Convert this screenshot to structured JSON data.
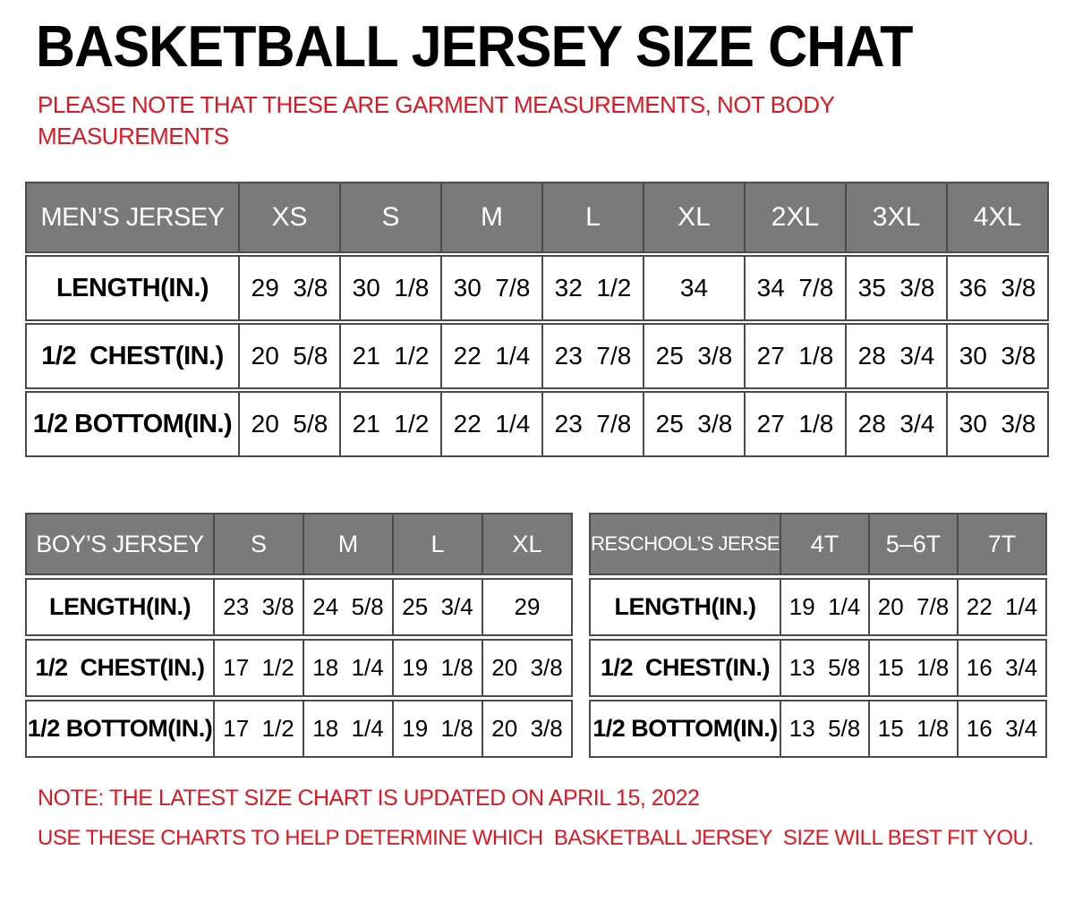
{
  "page": {
    "title": "BASKETBALL JERSEY SIZE CHAT",
    "top_note_line1": "PLEASE NOTE THAT THESE ARE GARMENT MEASUREMENTS, NOT BODY",
    "top_note_line2": "MEASUREMENTS",
    "bottom_note_1": "NOTE: THE LATEST SIZE CHART IS UPDATED ON APRIL 15, 2022",
    "bottom_note_2": "USE THESE CHARTS TO HELP DETERMINE WHICH  BASKETBALL JERSEY  SIZE WILL BEST FIT YOU."
  },
  "colors": {
    "header_bg": "#7a7a7a",
    "border": "#4b4b4b",
    "note_red": "#de1823"
  },
  "chart_data": [
    {
      "type": "table",
      "title": "MEN’S JERSEY",
      "columns": [
        "XS",
        "S",
        "M",
        "L",
        "XL",
        "2XL",
        "3XL",
        "4XL"
      ],
      "rows": [
        {
          "label": "LENGTH(IN.)",
          "values": [
            "29  3/8",
            "30  1/8",
            "30  7/8",
            "32  1/2",
            "34",
            "34  7/8",
            "35  3/8",
            "36  3/8"
          ]
        },
        {
          "label": "1/2  CHEST(IN.)",
          "values": [
            "20  5/8",
            "21  1/2",
            "22  1/4",
            "23  7/8",
            "25  3/8",
            "27  1/8",
            "28  3/4",
            "30  3/8"
          ]
        },
        {
          "label": "1/2 BOTTOM(IN.)",
          "values": [
            "20  5/8",
            "21  1/2",
            "22  1/4",
            "23  7/8",
            "25  3/8",
            "27  1/8",
            "28  3/4",
            "30  3/8"
          ]
        }
      ]
    },
    {
      "type": "table",
      "title": "BOY’S JERSEY",
      "columns": [
        "S",
        "M",
        "L",
        "XL"
      ],
      "rows": [
        {
          "label": "LENGTH(IN.)",
          "values": [
            "23  3/8",
            "24  5/8",
            "25  3/4",
            "29"
          ]
        },
        {
          "label": "1/2  CHEST(IN.)",
          "values": [
            "17  1/2",
            "18  1/4",
            "19  1/8",
            "20  3/8"
          ]
        },
        {
          "label": "1/2 BOTTOM(IN.)",
          "values": [
            "17  1/2",
            "18  1/4",
            "19  1/8",
            "20  3/8"
          ]
        }
      ]
    },
    {
      "type": "table",
      "title": "PRESCHOOL’S JERSEY",
      "columns": [
        "4T",
        "5–6T",
        "7T"
      ],
      "rows": [
        {
          "label": "LENGTH(IN.)",
          "values": [
            "19  1/4",
            "20  7/8",
            "22  1/4"
          ]
        },
        {
          "label": "1/2  CHEST(IN.)",
          "values": [
            "13  5/8",
            "15  1/8",
            "16  3/4"
          ]
        },
        {
          "label": "1/2 BOTTOM(IN.)",
          "values": [
            "13  5/8",
            "15  1/8",
            "16  3/4"
          ]
        }
      ]
    }
  ]
}
